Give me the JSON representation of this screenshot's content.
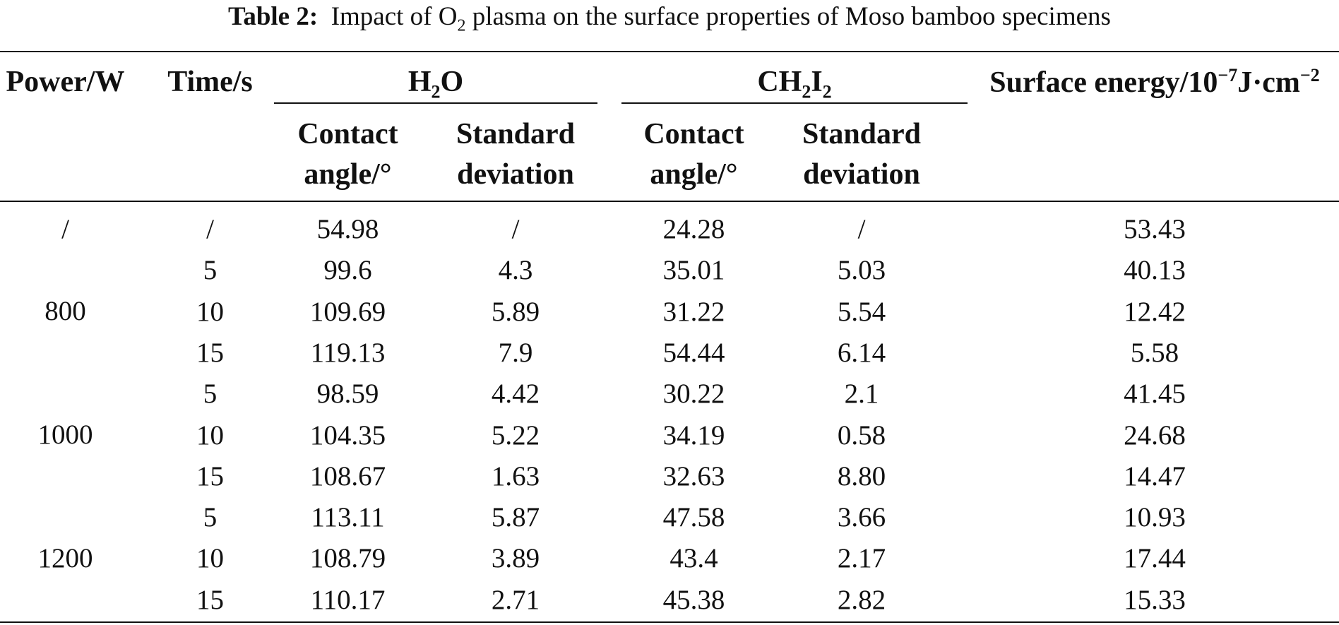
{
  "caption": {
    "label": "Table 2:",
    "text_before": "Impact of O",
    "subscript": "2",
    "text_after": " plasma on the surface properties of Moso bamboo specimens"
  },
  "table": {
    "headers": {
      "power": "Power/W",
      "time": "Time/s",
      "h2o": {
        "main": "H",
        "sub": "2",
        "tail": "O"
      },
      "ch2i2": {
        "main": "CH",
        "sub1": "2",
        "mid": "I",
        "sub2": "2"
      },
      "surface_energy": {
        "main": "Surface energy/10",
        "exp": "−7",
        "unit": "J·cm",
        "exp2": "−2"
      },
      "contact_angle": "Contact angle/°",
      "standard_deviation": "Standard deviation"
    },
    "power_groups": [
      "/",
      "800",
      "1000",
      "1200"
    ],
    "rows": [
      {
        "time": "/",
        "h2o_angle": "54.98",
        "h2o_sd": "/",
        "ch2i2_angle": "24.28",
        "ch2i2_sd": "/",
        "surface_energy": "53.43"
      },
      {
        "time": "5",
        "h2o_angle": "99.6",
        "h2o_sd": "4.3",
        "ch2i2_angle": "35.01",
        "ch2i2_sd": "5.03",
        "surface_energy": "40.13"
      },
      {
        "time": "10",
        "h2o_angle": "109.69",
        "h2o_sd": "5.89",
        "ch2i2_angle": "31.22",
        "ch2i2_sd": "5.54",
        "surface_energy": "12.42"
      },
      {
        "time": "15",
        "h2o_angle": "119.13",
        "h2o_sd": "7.9",
        "ch2i2_angle": "54.44",
        "ch2i2_sd": "6.14",
        "surface_energy": "5.58"
      },
      {
        "time": "5",
        "h2o_angle": "98.59",
        "h2o_sd": "4.42",
        "ch2i2_angle": "30.22",
        "ch2i2_sd": "2.1",
        "surface_energy": "41.45"
      },
      {
        "time": "10",
        "h2o_angle": "104.35",
        "h2o_sd": "5.22",
        "ch2i2_angle": "34.19",
        "ch2i2_sd": "0.58",
        "surface_energy": "24.68"
      },
      {
        "time": "15",
        "h2o_angle": "108.67",
        "h2o_sd": "1.63",
        "ch2i2_angle": "32.63",
        "ch2i2_sd": "8.80",
        "surface_energy": "14.47"
      },
      {
        "time": "5",
        "h2o_angle": "113.11",
        "h2o_sd": "5.87",
        "ch2i2_angle": "47.58",
        "ch2i2_sd": "3.66",
        "surface_energy": "10.93"
      },
      {
        "time": "10",
        "h2o_angle": "108.79",
        "h2o_sd": "3.89",
        "ch2i2_angle": "43.4",
        "ch2i2_sd": "2.17",
        "surface_energy": "17.44"
      },
      {
        "time": "15",
        "h2o_angle": "110.17",
        "h2o_sd": "2.71",
        "ch2i2_angle": "45.38",
        "ch2i2_sd": "2.82",
        "surface_energy": "15.33"
      }
    ]
  }
}
